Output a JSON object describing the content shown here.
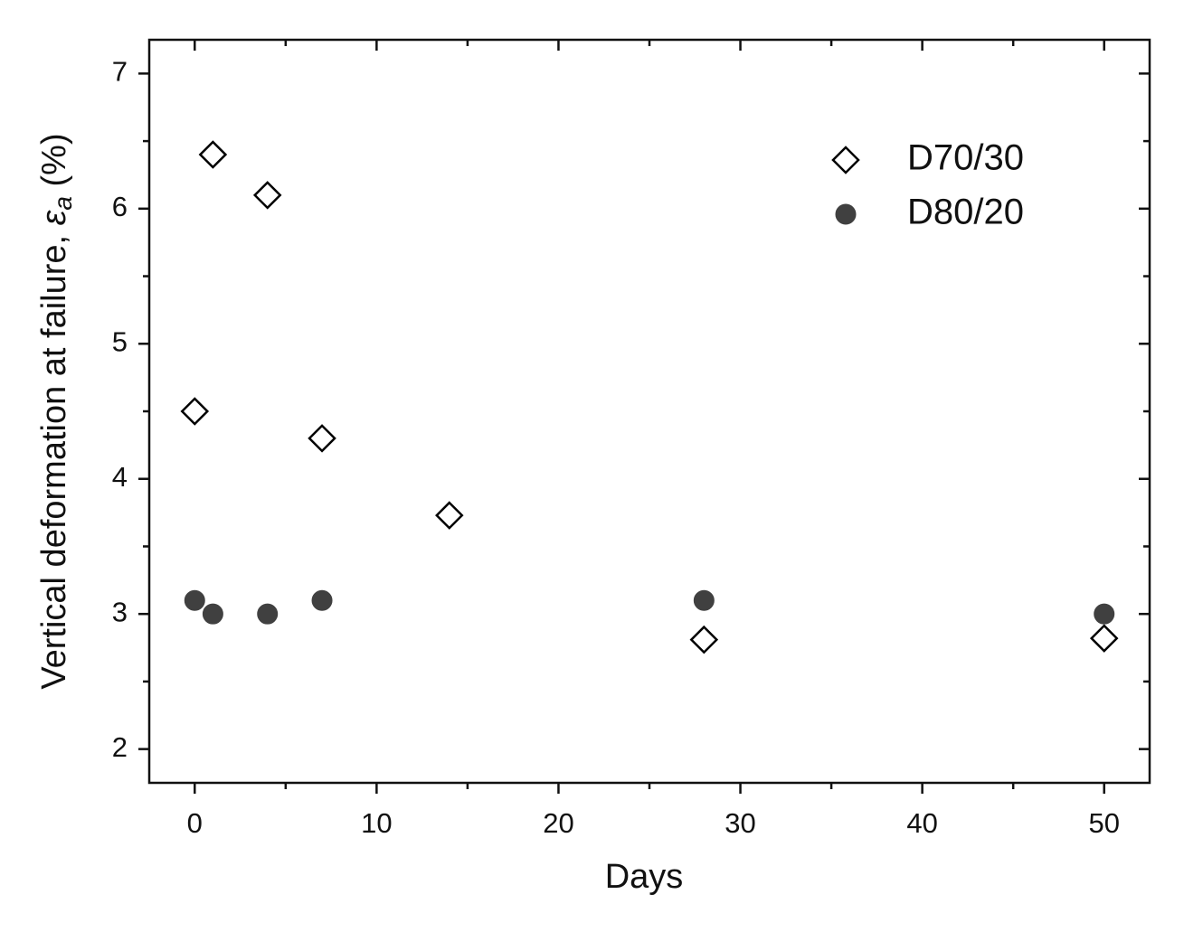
{
  "chart_data": {
    "type": "scatter",
    "x_label": "Days",
    "y_label": {
      "text": "Vertical deformation at failure, ",
      "symbol": "ε",
      "subscript": "a",
      "unit": "(%)"
    },
    "xlim": [
      -2.5,
      52.5
    ],
    "xticks": [
      0,
      10,
      20,
      30,
      40,
      50
    ],
    "ylim": [
      1.75,
      7.25
    ],
    "yticks": [
      2,
      3,
      4,
      5,
      6,
      7
    ],
    "legend": "upper right",
    "series": [
      {
        "name": "D70/30",
        "color": "#000000",
        "marker": "diamond",
        "filled": false,
        "x": [
          0,
          1,
          4,
          7,
          14,
          28,
          50
        ],
        "values": [
          4.5,
          6.4,
          6.1,
          4.3,
          3.73,
          2.81,
          2.82
        ]
      },
      {
        "name": "D80/20",
        "color": "#404040",
        "marker": "circle",
        "filled": true,
        "x": [
          0,
          1,
          4,
          7,
          28,
          50
        ],
        "values": [
          3.1,
          3.0,
          3.0,
          3.1,
          3.1,
          3.0
        ]
      }
    ]
  }
}
